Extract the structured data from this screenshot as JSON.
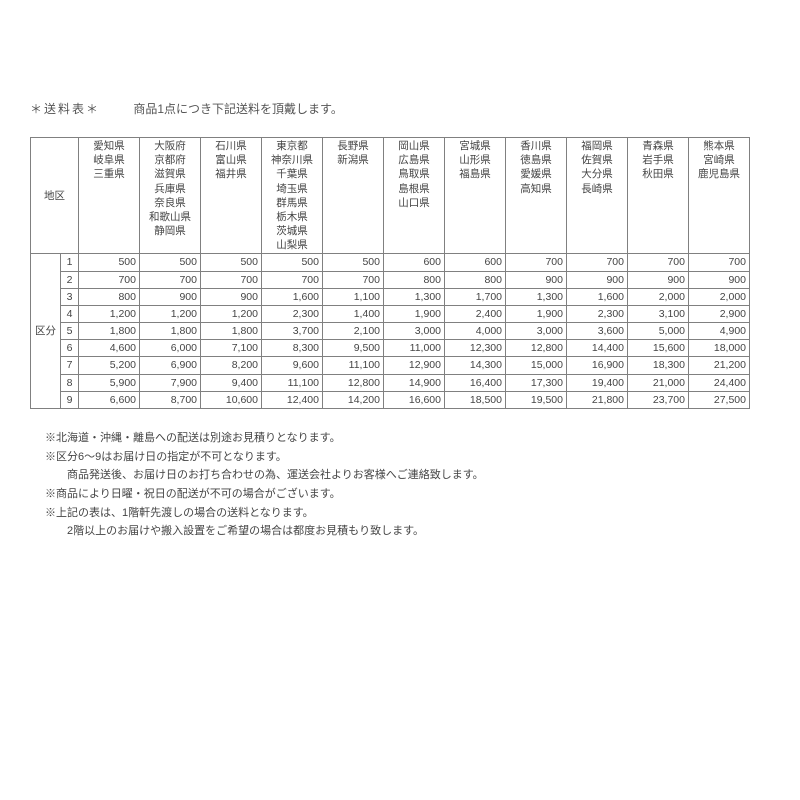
{
  "header": {
    "title": "＊送料表＊",
    "subtitle": "商品1点につき下記送料を頂戴します。"
  },
  "table": {
    "region_label": "地区",
    "kubun_label": "区分",
    "columns": [
      "愛知県\n岐阜県\n三重県",
      "大阪府\n京都府\n滋賀県\n兵庫県\n奈良県\n和歌山県\n静岡県",
      "石川県\n富山県\n福井県",
      "東京都\n神奈川県\n千葉県\n埼玉県\n群馬県\n栃木県\n茨城県\n山梨県",
      "長野県\n新潟県",
      "岡山県\n広島県\n鳥取県\n島根県\n山口県",
      "宮城県\n山形県\n福島県",
      "香川県\n徳島県\n愛媛県\n高知県",
      "福岡県\n佐賀県\n大分県\n長崎県",
      "青森県\n岩手県\n秋田県",
      "熊本県\n宮崎県\n鹿児島県"
    ],
    "rows": [
      {
        "n": "1",
        "v": [
          "500",
          "500",
          "500",
          "500",
          "500",
          "600",
          "600",
          "700",
          "700",
          "700",
          "700"
        ]
      },
      {
        "n": "2",
        "v": [
          "700",
          "700",
          "700",
          "700",
          "700",
          "800",
          "800",
          "900",
          "900",
          "900",
          "900"
        ]
      },
      {
        "n": "3",
        "v": [
          "800",
          "900",
          "900",
          "1,600",
          "1,100",
          "1,300",
          "1,700",
          "1,300",
          "1,600",
          "2,000",
          "2,000"
        ]
      },
      {
        "n": "4",
        "v": [
          "1,200",
          "1,200",
          "1,200",
          "2,300",
          "1,400",
          "1,900",
          "2,400",
          "1,900",
          "2,300",
          "3,100",
          "2,900"
        ]
      },
      {
        "n": "5",
        "v": [
          "1,800",
          "1,800",
          "1,800",
          "3,700",
          "2,100",
          "3,000",
          "4,000",
          "3,000",
          "3,600",
          "5,000",
          "4,900"
        ]
      },
      {
        "n": "6",
        "v": [
          "4,600",
          "6,000",
          "7,100",
          "8,300",
          "9,500",
          "11,000",
          "12,300",
          "12,800",
          "14,400",
          "15,600",
          "18,000"
        ]
      },
      {
        "n": "7",
        "v": [
          "5,200",
          "6,900",
          "8,200",
          "9,600",
          "11,100",
          "12,900",
          "14,300",
          "15,000",
          "16,900",
          "18,300",
          "21,200"
        ]
      },
      {
        "n": "8",
        "v": [
          "5,900",
          "7,900",
          "9,400",
          "11,100",
          "12,800",
          "14,900",
          "16,400",
          "17,300",
          "19,400",
          "21,000",
          "24,400"
        ]
      },
      {
        "n": "9",
        "v": [
          "6,600",
          "8,700",
          "10,600",
          "12,400",
          "14,200",
          "16,600",
          "18,500",
          "19,500",
          "21,800",
          "23,700",
          "27,500"
        ]
      }
    ]
  },
  "notes": [
    "※北海道・沖縄・離島への配送は別途お見積りとなります。",
    "※区分6～9はお届け日の指定が不可となります。",
    "商品発送後、お届け日のお打ち合わせの為、運送会社よりお客様へご連絡致します。",
    "※商品により日曜・祝日の配送が不可の場合がございます。",
    "※上記の表は、1階軒先渡しの場合の送料となります。",
    "2階以上のお届けや搬入設置をご希望の場合は都度お見積もり致します。"
  ],
  "notes_indent": [
    false,
    false,
    true,
    false,
    false,
    true
  ],
  "styling": {
    "background": "#ffffff",
    "text_color": "#444444",
    "border_color": "#808080",
    "body_fontsize": 11,
    "table_fontsize": 10.5,
    "pref_col_width": 61,
    "region_col_width": 30,
    "kubun_num_width": 18
  }
}
